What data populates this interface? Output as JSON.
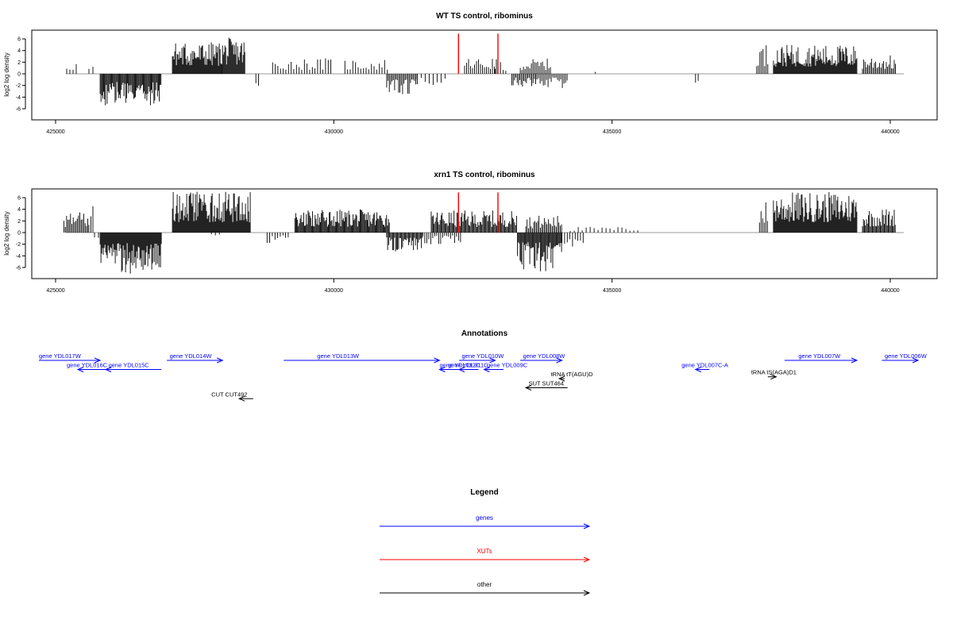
{
  "chart_data": [
    {
      "type": "bar",
      "title": "WT TS control, ribominus",
      "ylabel": "log2 log density",
      "xlim": [
        425000,
        440100
      ],
      "ylim": [
        -8,
        7.5
      ],
      "xticks": [
        "425000",
        "430000",
        "435000",
        "440000"
      ],
      "yticks": [
        "6",
        "4",
        "2",
        "0",
        "-2",
        "-4",
        "-6"
      ],
      "segments": [
        {
          "start": 425200,
          "end": 425400,
          "max": 2.3,
          "sign": 1,
          "density": 0.25
        },
        {
          "start": 425600,
          "end": 425700,
          "max": 1.5,
          "sign": 1,
          "density": 0.2
        },
        {
          "start": 425800,
          "end": 426900,
          "max": 5.6,
          "sign": -1,
          "density": 0.9
        },
        {
          "start": 427100,
          "end": 428000,
          "max": 5.5,
          "sign": 1,
          "density": 1.0
        },
        {
          "start": 428000,
          "end": 428400,
          "max": 6.2,
          "sign": 1,
          "density": 1.0
        },
        {
          "start": 428600,
          "end": 428650,
          "max": 2.8,
          "sign": -1,
          "density": 0.3
        },
        {
          "start": 428900,
          "end": 429950,
          "max": 2.7,
          "sign": 1,
          "density": 0.3
        },
        {
          "start": 430200,
          "end": 431000,
          "max": 2.6,
          "sign": 1,
          "density": 0.3
        },
        {
          "start": 430950,
          "end": 431500,
          "max": 3.5,
          "sign": -1,
          "density": 0.6
        },
        {
          "start": 431500,
          "end": 432000,
          "max": 2.0,
          "sign": -1,
          "density": 0.2
        },
        {
          "start": 432350,
          "end": 432950,
          "max": 2.8,
          "sign": 1,
          "density": 0.4
        },
        {
          "start": 432900,
          "end": 433100,
          "max": 2.0,
          "sign": 1,
          "density": 0.3
        },
        {
          "start": 433200,
          "end": 433650,
          "max": 2.2,
          "sign": -1,
          "density": 0.6
        },
        {
          "start": 433350,
          "end": 433900,
          "max": 2.6,
          "sign": 1,
          "density": 0.5
        },
        {
          "start": 433650,
          "end": 434200,
          "max": 2.5,
          "sign": -1,
          "density": 0.5
        },
        {
          "start": 434700,
          "end": 434750,
          "max": 1.0,
          "sign": 1,
          "density": 0.2
        },
        {
          "start": 436500,
          "end": 436550,
          "max": 2.0,
          "sign": -1,
          "density": 0.3
        },
        {
          "start": 437600,
          "end": 437800,
          "max": 5.2,
          "sign": 1,
          "density": 0.5
        },
        {
          "start": 437900,
          "end": 439400,
          "max": 5.0,
          "sign": 1,
          "density": 1.0
        },
        {
          "start": 439500,
          "end": 440100,
          "max": 3.2,
          "sign": 1,
          "density": 0.6
        }
      ],
      "markers": [
        {
          "x": 432240,
          "y": 6.9,
          "color": "#ff0000"
        },
        {
          "x": 432950,
          "y": 6.9,
          "color": "#ff0000"
        }
      ]
    },
    {
      "type": "bar",
      "title": "xrn1 TS control, ribominus",
      "ylabel": "log2 log density",
      "xlim": [
        425000,
        440100
      ],
      "ylim": [
        -8,
        7.5
      ],
      "xticks": [
        "425000",
        "430000",
        "435000",
        "440000"
      ],
      "yticks": [
        "6",
        "4",
        "2",
        "0",
        "-2",
        "-4",
        "-6"
      ],
      "segments": [
        {
          "start": 425150,
          "end": 425600,
          "max": 3.6,
          "sign": 1,
          "density": 0.6
        },
        {
          "start": 425600,
          "end": 425700,
          "max": 5.0,
          "sign": 1,
          "density": 0.4
        },
        {
          "start": 425700,
          "end": 425800,
          "max": 1.0,
          "sign": -1,
          "density": 0.2
        },
        {
          "start": 425800,
          "end": 426900,
          "max": 7.3,
          "sign": -1,
          "density": 1.0
        },
        {
          "start": 427100,
          "end": 428500,
          "max": 7.0,
          "sign": 1,
          "density": 1.0
        },
        {
          "start": 427800,
          "end": 428000,
          "max": 1.0,
          "sign": -1,
          "density": 0.2
        },
        {
          "start": 428800,
          "end": 429200,
          "max": 2.0,
          "sign": -1,
          "density": 0.3
        },
        {
          "start": 429300,
          "end": 431000,
          "max": 4.0,
          "sign": 1,
          "density": 0.9
        },
        {
          "start": 430950,
          "end": 431600,
          "max": 3.3,
          "sign": -1,
          "density": 0.8
        },
        {
          "start": 431600,
          "end": 432300,
          "max": 2.0,
          "sign": -1,
          "density": 0.4
        },
        {
          "start": 431750,
          "end": 433300,
          "max": 3.8,
          "sign": 1,
          "density": 0.8
        },
        {
          "start": 433300,
          "end": 434100,
          "max": 6.7,
          "sign": -1,
          "density": 0.9
        },
        {
          "start": 433450,
          "end": 434100,
          "max": 3.0,
          "sign": 1,
          "density": 0.6
        },
        {
          "start": 434100,
          "end": 434500,
          "max": 3.8,
          "sign": -1,
          "density": 0.3
        },
        {
          "start": 434250,
          "end": 435500,
          "max": 1.0,
          "sign": 1,
          "density": 0.2
        },
        {
          "start": 437650,
          "end": 437800,
          "max": 5.5,
          "sign": 1,
          "density": 0.5
        },
        {
          "start": 437900,
          "end": 439400,
          "max": 7.0,
          "sign": 1,
          "density": 1.0
        },
        {
          "start": 439500,
          "end": 440100,
          "max": 4.2,
          "sign": 1,
          "density": 0.8
        }
      ],
      "markers": [
        {
          "x": 432240,
          "y": 6.9,
          "color": "#ff0000"
        },
        {
          "x": 432950,
          "y": 6.9,
          "color": "#ff0000"
        }
      ]
    }
  ],
  "annotations": {
    "title": "Annotations",
    "items": [
      {
        "label": "gene YDL017W",
        "start": 424700,
        "end": 425800,
        "dir": "right",
        "row": 0,
        "color": "#0000ff",
        "label_pos": 424700
      },
      {
        "label": "gene YDL016C",
        "start": 425400,
        "end": 425900,
        "dir": "left",
        "row": 1,
        "color": "#0000ff",
        "label_pos": 425200
      },
      {
        "label": "gene YDL015C",
        "start": 425900,
        "end": 426900,
        "dir": "left",
        "row": 1,
        "color": "#0000ff",
        "label_pos": 425950
      },
      {
        "label": "gene YDL014W",
        "start": 427000,
        "end": 428000,
        "dir": "right",
        "row": 0,
        "color": "#0000ff",
        "label_pos": 427050
      },
      {
        "label": "gene YDL013W",
        "start": 429100,
        "end": 431900,
        "dir": "right",
        "row": 0,
        "color": "#0000ff",
        "label_pos": 429700
      },
      {
        "label": "gene YDL012C",
        "start": 431900,
        "end": 432500,
        "dir": "left",
        "row": 1,
        "color": "#0000ff",
        "label_pos": 431900
      },
      {
        "label": "gene YDL010W",
        "start": 432250,
        "end": 432900,
        "dir": "right",
        "row": 0,
        "color": "#0000ff",
        "label_pos": 432300
      },
      {
        "label": "gene YDL011C",
        "start": 432250,
        "end": 432600,
        "dir": "left",
        "row": 1,
        "color": "#0000ff",
        "label_pos": 432050
      },
      {
        "label": "gene YDL009C",
        "start": 432700,
        "end": 433050,
        "dir": "left",
        "row": 1,
        "color": "#0000ff",
        "label_pos": 432750
      },
      {
        "label": "gene YDL008W",
        "start": 433350,
        "end": 434100,
        "dir": "right",
        "row": 0,
        "color": "#0000ff",
        "label_pos": 433400
      },
      {
        "label": "tRNA tT(AGU)D",
        "start": 434050,
        "end": 434150,
        "dir": "left",
        "row": 2,
        "color": "#000000",
        "label_pos": 433900
      },
      {
        "label": "SUT SUT464",
        "start": 433450,
        "end": 434200,
        "dir": "left",
        "row": 3,
        "color": "#000000",
        "label_pos": 433500
      },
      {
        "label": "gene YDL007C-A",
        "start": 436500,
        "end": 436750,
        "dir": "left",
        "row": 1,
        "color": "#0000ff",
        "label_pos": 436250
      },
      {
        "label": "tRNA tS(AGA)D1",
        "start": 437800,
        "end": 437950,
        "dir": "right",
        "row": 1.8,
        "color": "#000000",
        "label_pos": 437500
      },
      {
        "label": "gene YDL007W",
        "start": 438100,
        "end": 439400,
        "dir": "right",
        "row": 0,
        "color": "#0000ff",
        "label_pos": 438350
      },
      {
        "label": "gene YDL006W",
        "start": 439850,
        "end": 440500,
        "dir": "right",
        "row": 0,
        "color": "#0000ff",
        "label_pos": 439900
      },
      {
        "label": "CUT CUT492",
        "start": 428300,
        "end": 428550,
        "dir": "left",
        "row": 4.2,
        "color": "#000000",
        "label_pos": 427800
      }
    ]
  },
  "legend": {
    "title": "Legend",
    "items": [
      {
        "label": "genes",
        "color": "#0000ff"
      },
      {
        "label": "XUTs",
        "color": "#ff0000"
      },
      {
        "label": "other",
        "color": "#000000"
      }
    ]
  }
}
